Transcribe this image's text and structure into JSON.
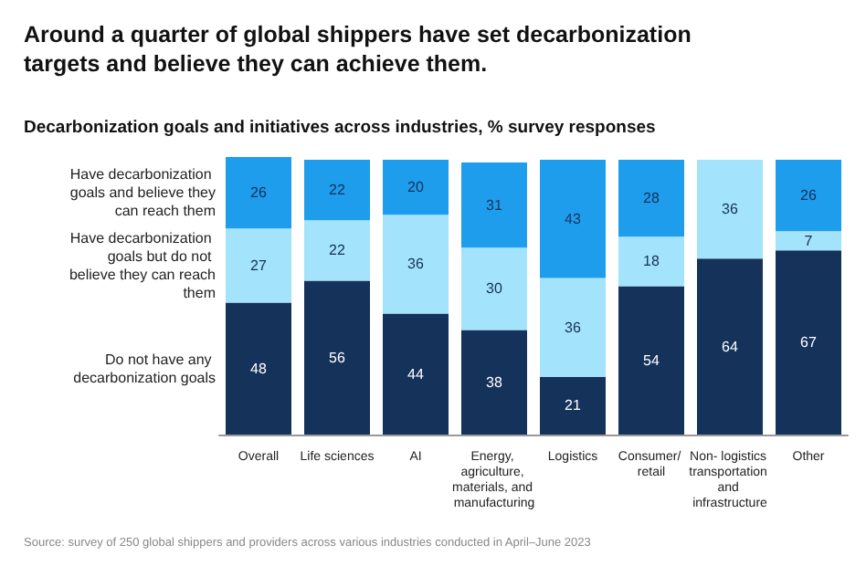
{
  "chart_data": {
    "type": "bar",
    "title": "Around a quarter of global shippers have set decarbonization targets and believe they can achieve them.",
    "subtitle": "Decarbonization goals and initiatives across industries, % survey responses",
    "categories": [
      "Overall",
      "Life sciences",
      "AI",
      "Energy, agriculture, materials, and manufacturing",
      "Logistics",
      "Consumer/ retail",
      "Non- logistics transportation and infrastructure",
      "Other"
    ],
    "stacked": true,
    "series": [
      {
        "name": "Do not have any decarbonization goals",
        "color": "#14325a",
        "values": [
          48,
          56,
          44,
          38,
          21,
          54,
          64,
          67
        ]
      },
      {
        "name": "Have decarbonization goals but do not believe they can reach them",
        "color": "#a3e3fb",
        "values": [
          27,
          22,
          36,
          30,
          36,
          18,
          36,
          7
        ]
      },
      {
        "name": "Have decarbonization goals and believe they can reach them",
        "color": "#1f9ded",
        "values": [
          26,
          22,
          20,
          31,
          43,
          28,
          null,
          26
        ]
      }
    ],
    "ylim": [
      0,
      101
    ],
    "tick_labels": "x",
    "data_labels": true,
    "legend": "left",
    "grid": false,
    "annotations": [
      "Source: survey of 250 global shippers and providers across various industries conducted in April–June 2023"
    ]
  }
}
